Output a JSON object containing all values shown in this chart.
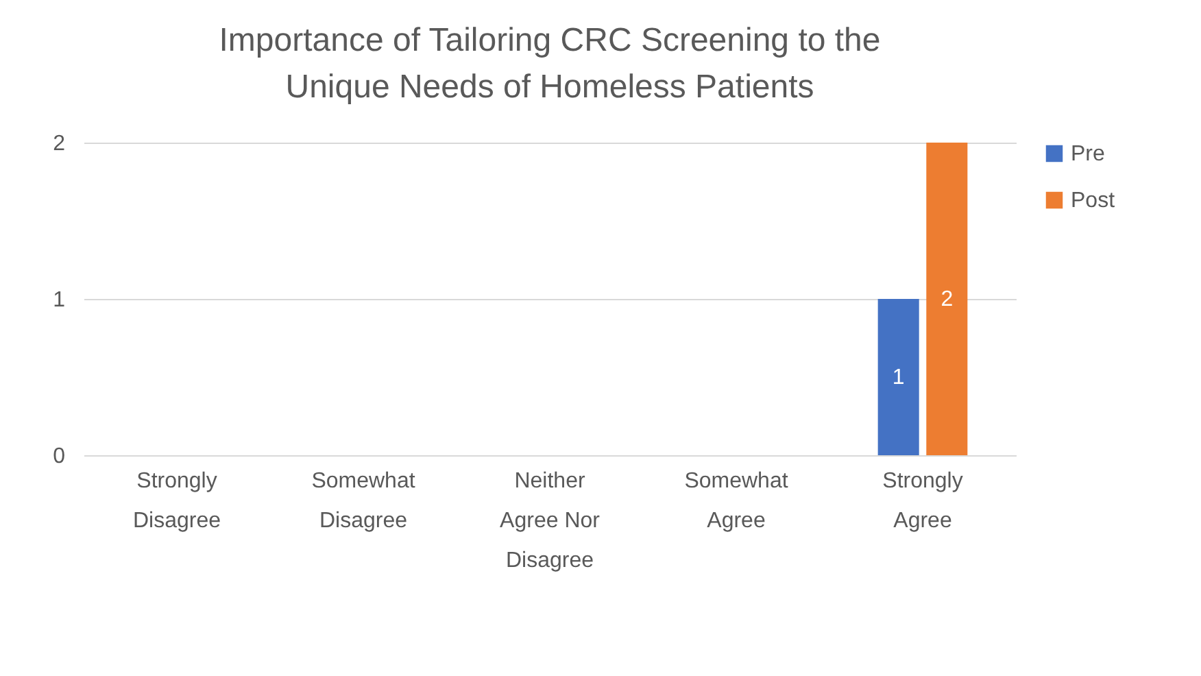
{
  "chart_data": {
    "type": "bar",
    "title": "Importance of Tailoring CRC Screening to the Unique Needs of Homeless Patients",
    "categories": [
      "Strongly Disagree",
      "Somewhat Disagree",
      "Neither Agree Nor Disagree",
      "Somewhat Agree",
      "Strongly Agree"
    ],
    "series": [
      {
        "name": "Pre",
        "color": "#4472c4",
        "values": [
          0,
          0,
          0,
          0,
          1
        ],
        "value_labels": [
          null,
          null,
          null,
          null,
          "1"
        ]
      },
      {
        "name": "Post",
        "color": "#ed7d31",
        "values": [
          0,
          0,
          0,
          0,
          2
        ],
        "value_labels": [
          null,
          null,
          null,
          null,
          "2"
        ]
      }
    ],
    "ylim": [
      0,
      2
    ],
    "yticks": [
      0,
      1,
      2
    ],
    "grid": "y",
    "legend": "right"
  }
}
